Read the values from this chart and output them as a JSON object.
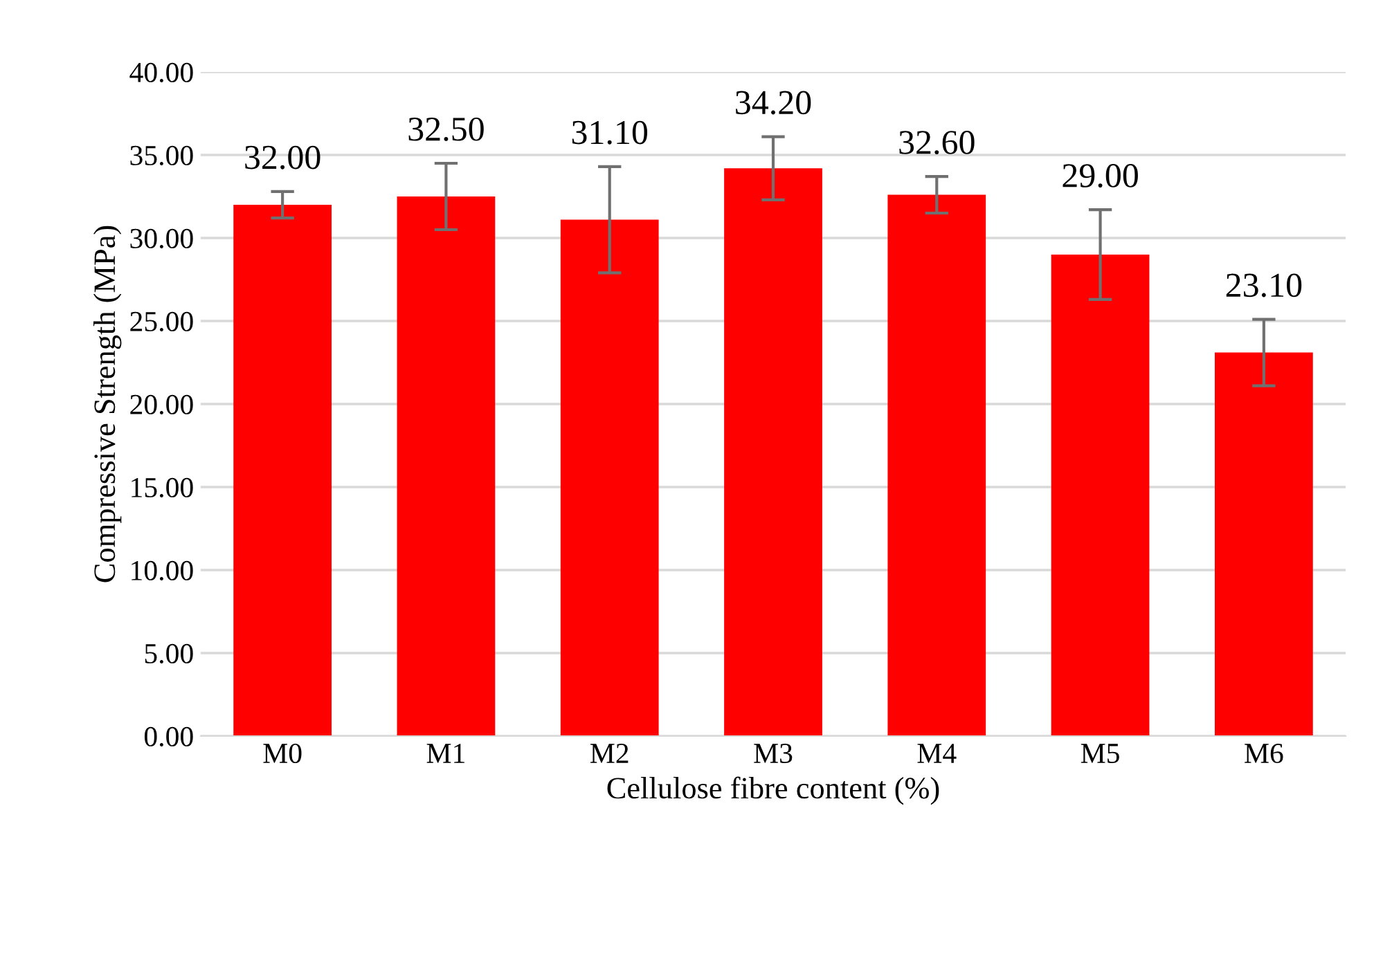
{
  "chart_data": {
    "type": "bar",
    "xlabel": "Cellulose fibre content (%)",
    "ylabel": "Compressive Strength (MPa)",
    "categories": [
      "M0",
      "M1",
      "M2",
      "M3",
      "M4",
      "M5",
      "M6"
    ],
    "values": [
      32.0,
      32.5,
      31.1,
      34.2,
      32.6,
      29.0,
      23.1
    ],
    "errors": [
      [
        31.2,
        32.8
      ],
      [
        30.5,
        34.5
      ],
      [
        27.9,
        34.3
      ],
      [
        32.3,
        36.1
      ],
      [
        31.5,
        33.7
      ],
      [
        26.3,
        31.7
      ],
      [
        21.1,
        25.1
      ]
    ],
    "value_labels": [
      "32.00",
      "32.50",
      "31.10",
      "34.20",
      "32.60",
      "29.00",
      "23.10"
    ],
    "color": "#ff0000",
    "ylim": [
      0,
      40
    ],
    "yticks": [
      {
        "value": 0,
        "label": "0.00"
      },
      {
        "value": 5,
        "label": "5.00"
      },
      {
        "value": 10,
        "label": "10.00"
      },
      {
        "value": 15,
        "label": "15.00"
      },
      {
        "value": 20,
        "label": "20.00"
      },
      {
        "value": 25,
        "label": "25.00"
      },
      {
        "value": 30,
        "label": "30.00"
      },
      {
        "value": 35,
        "label": "35.00"
      },
      {
        "value": 40,
        "label": "40.00"
      }
    ],
    "grid": "y"
  }
}
